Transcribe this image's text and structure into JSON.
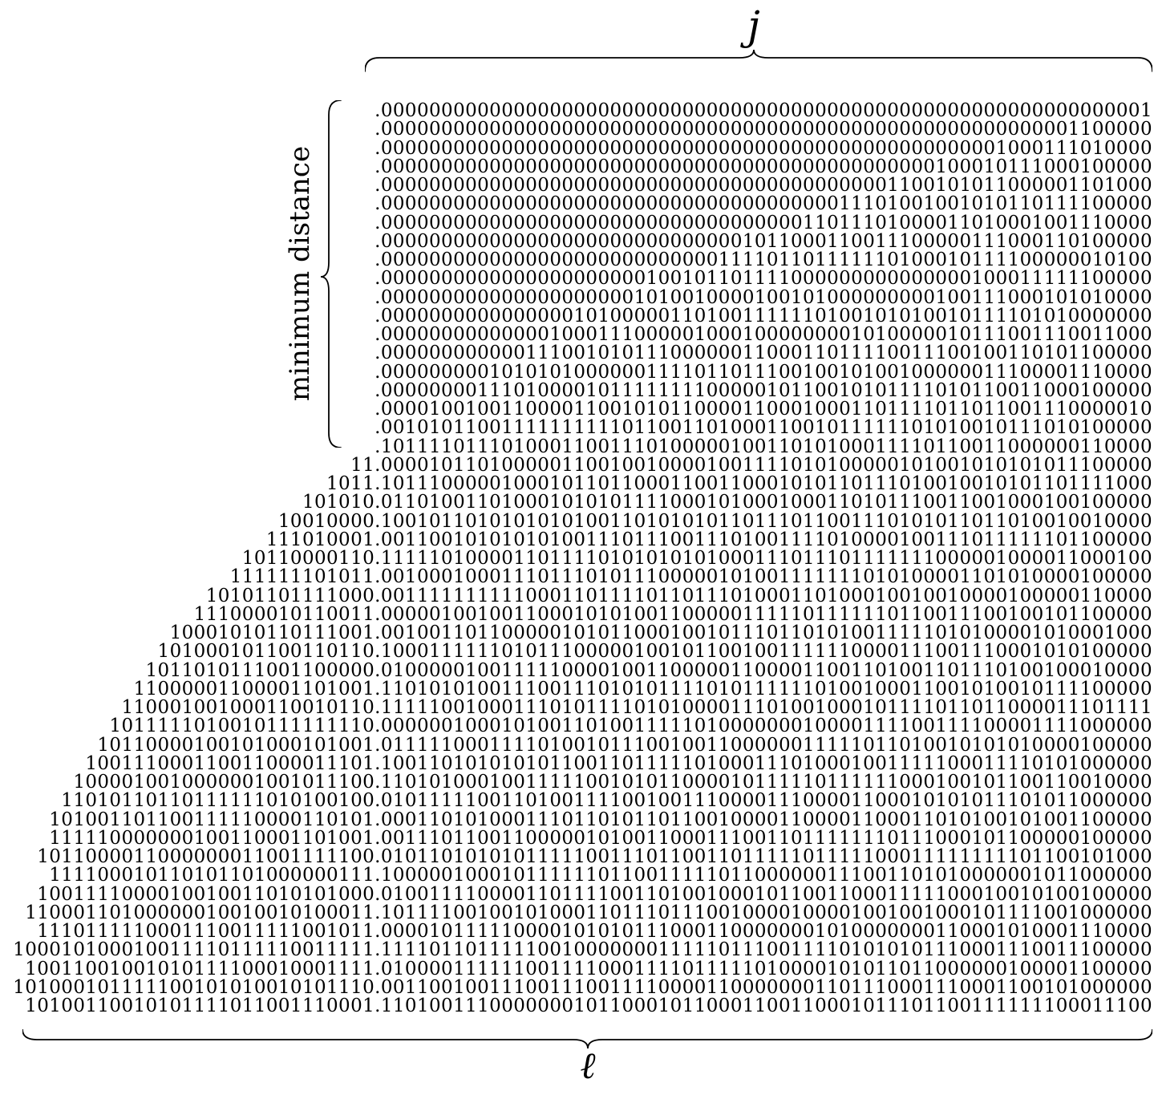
{
  "figure": {
    "top_label": "j",
    "bottom_label": "ℓ",
    "left_label": "minimum distance"
  },
  "rows": [
    ".0000000000000000000000000000000000000000000000000000000000000001",
    ".0000000000000000000000000000000000000000000000000000000001100000",
    ".0000000000000000000000000000000000000000000000000001000111010000",
    ".0000000000000000000000000000000000000000000000100010111000100000",
    ".0000000000000000000000000000000000000000001100101011000001101000",
    ".0000000000000000000000000000000000000011101001001010110111100000",
    ".0000000000000000000000000000000000011011101000011010001001110000",
    ".0000000000000000000000000000001011000110011100000111000110100000",
    ".0000000000000000000000000000111101101111110100010111100000010100",
    ".0000000000000000000000100101101111000000000000000100011111100000",
    ".0000000000000000000001010010000100101000000000100111000101010000",
    ".0000000000000000101000001101001111110100101010010111101010000000",
    ".0000000000000010001110000010001000000001010000010111001110011000",
    ".0000000000001110010101110000001100011011110011100100110101100000",
    ".0000000001010101000000111101101110010010100100000011100001110000",
    ".0000000011101000010111111110000010110010101111010110011000100000",
    ".0000100100110000110010101100001100010001101111011011001110000010",
    ".0010101100111111111101100110100011001011111101010010111010100000",
    ".1011110111010001100111010000010011010100011110110011000000110000",
    "11.0000101101000001100100100001001111010100000101001010101011100000",
    "1011.1011100000100010110110001100110001010110111010010010101101111000",
    "101010.0110100110100010101011110001010001000110101110011001000100100000",
    "10010000.1001011010101010100110101010110111011001110101011011010010010000",
    "111010001.0011001010101010011101110011101001111010000100111011111101100000",
    "10110000110.1111101000011011110101010101000111011101111111000001000011000100",
    "111111101011.0010001000111011101011100000101001111111010100001101010000100000",
    "10101101111000.0011111111110001101111011011101000110100010010010000100000110000",
    "111000010110011.0000010010011000101010011000001111101111110110011100100101100000",
    "10001010110111001.0010011011000001010110001001011101101010011111010100001010001000",
    "101000101100110110.1000111111010111000001001011001001111110000111001110001010100000",
    "1011010111001100000.0100000100111110000100110000011000011001101001101110100100010000",
    "11000001100001101001.1101010100111001110101011110101111110100100011001010010111100000",
    "110001001000110010110.1111100100011101011110101000011101001000101111011011000011101111",
    "1011111010010111111110.0000001000101001101001111101000000010000111100111100001111000000",
    "10110000100101000101001.0111110001111010010111001001100000011111011010010101010000100000",
    "100111000110011000011101.1001101010101011001101111101000111010001001111100011110101000000",
    "1000010010000001001011100.1101010001001111100101011000010111110111111000100101100110010000",
    "11010110110111111010100100.0101111100110100111100100111000011100001100010101011101011000000",
    "101001101100111110000110101.0001101010001110110101101100100001100001100011010100101001100000",
    "111110000000100110001101001.0011101100110000010100110001110011011111110111000101100000100000",
    "1011000011000000011001111100.0101101010101111100111011001101111101111100011111111101100101000",
    "111100010110101101000000111.1000001000101111110110011111011000000111001101010000001011000000",
    "1001111000010010011010101000.0100111100001101111001101001000101100110001111100010010100100000",
    "11000110100000010010010100011.1011110010010100011011101110010000100001001001000101111001000000",
    "1110111110001110011111001011.0000101111100001010101110001100000001010000000110001010001110000",
    "100010100010011110111110011111.1111011011111001000000011111011100111101010101110001110011100000",
    "10011001001010111100010001111.0100001111110011110001111011111010000101011011000000100001100000",
    "101000101111100101010010101110.0011001001110011100111100001100000001101110001110001100101000000",
    "10100110010101111011001110001.1101001110000000101100010110001100110001011101100111111100011100"
  ]
}
